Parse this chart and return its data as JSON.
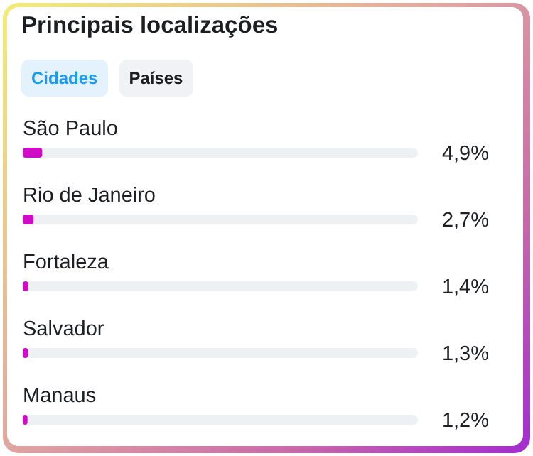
{
  "chart_data": {
    "type": "bar",
    "orientation": "horizontal",
    "title": "Principais localizações",
    "annotations": [
      "Cidades",
      "Países"
    ],
    "categories": [
      "São Paulo",
      "Rio de Janeiro",
      "Fortaleza",
      "Salvador",
      "Manaus"
    ],
    "values": [
      4.9,
      2.7,
      1.4,
      1.3,
      1.2
    ],
    "value_labels": [
      "4,9%",
      "2,7%",
      "1,4%",
      "1,3%",
      "1,2%"
    ],
    "color": "#d10cc6",
    "xlim": [
      0,
      100
    ]
  }
}
